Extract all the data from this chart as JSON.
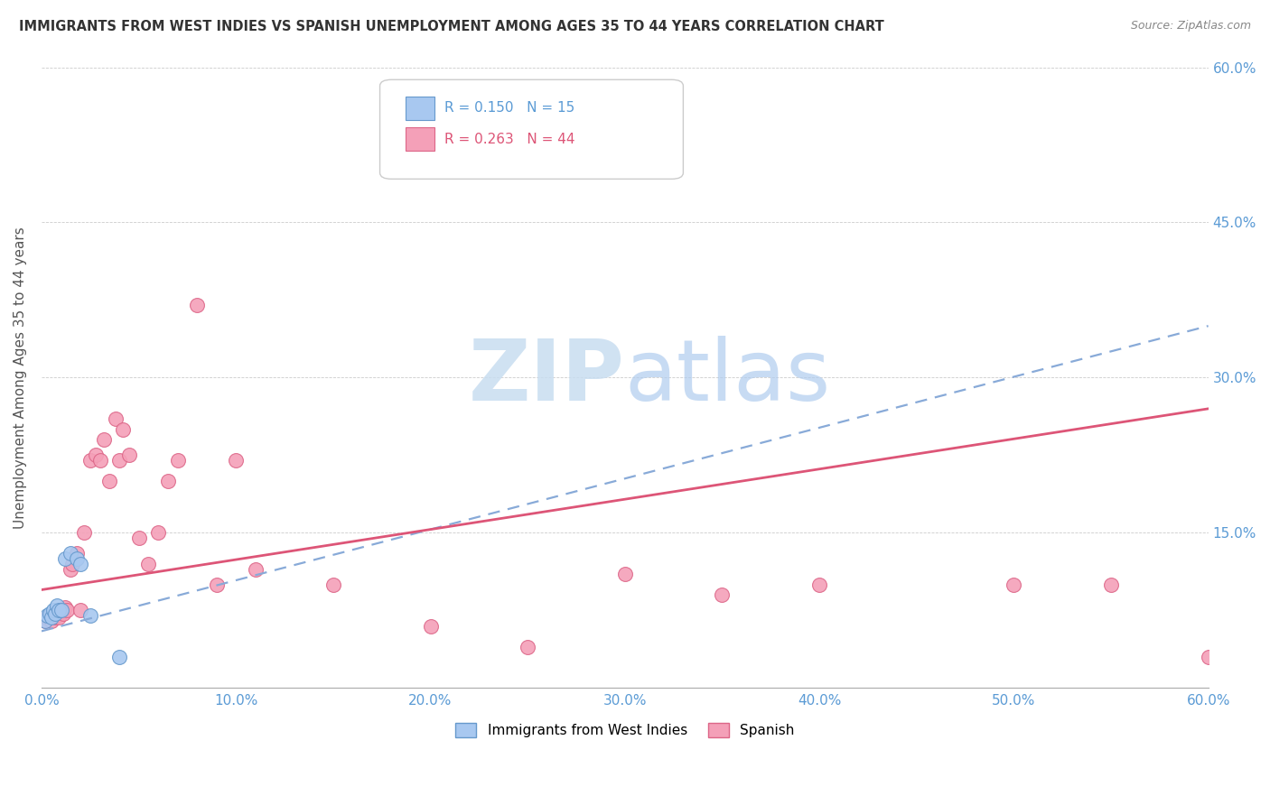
{
  "title": "IMMIGRANTS FROM WEST INDIES VS SPANISH UNEMPLOYMENT AMONG AGES 35 TO 44 YEARS CORRELATION CHART",
  "source": "Source: ZipAtlas.com",
  "ylabel": "Unemployment Among Ages 35 to 44 years",
  "xlim": [
    0.0,
    0.6
  ],
  "ylim": [
    0.0,
    0.6
  ],
  "xticks": [
    0.0,
    0.1,
    0.2,
    0.3,
    0.4,
    0.5,
    0.6
  ],
  "yticks": [
    0.0,
    0.15,
    0.3,
    0.45,
    0.6
  ],
  "xticklabels": [
    "0.0%",
    "10.0%",
    "20.0%",
    "30.0%",
    "40.0%",
    "50.0%",
    "60.0%"
  ],
  "yticklabels_right": [
    "15.0%",
    "30.0%",
    "45.0%",
    "60.0%"
  ],
  "west_indies_color": "#a8c8f0",
  "west_indies_edge": "#6699cc",
  "spanish_color": "#f4a0b8",
  "spanish_edge": "#dd6688",
  "trendline_west_color": "#88aad8",
  "trendline_spanish_color": "#dd5577",
  "legend_R_west": "R = 0.150",
  "legend_N_west": "N = 15",
  "legend_R_spanish": "R = 0.263",
  "legend_N_spanish": "N = 44",
  "west_indies_x": [
    0.002,
    0.003,
    0.004,
    0.005,
    0.006,
    0.007,
    0.008,
    0.009,
    0.01,
    0.012,
    0.015,
    0.018,
    0.02,
    0.025,
    0.04
  ],
  "west_indies_y": [
    0.065,
    0.07,
    0.072,
    0.068,
    0.075,
    0.072,
    0.08,
    0.075,
    0.075,
    0.125,
    0.13,
    0.125,
    0.12,
    0.07,
    0.03
  ],
  "spanish_x": [
    0.002,
    0.003,
    0.004,
    0.005,
    0.006,
    0.007,
    0.008,
    0.009,
    0.01,
    0.011,
    0.012,
    0.013,
    0.015,
    0.016,
    0.018,
    0.02,
    0.022,
    0.025,
    0.028,
    0.03,
    0.032,
    0.035,
    0.038,
    0.04,
    0.042,
    0.045,
    0.05,
    0.055,
    0.06,
    0.065,
    0.07,
    0.08,
    0.09,
    0.1,
    0.11,
    0.15,
    0.2,
    0.25,
    0.3,
    0.35,
    0.4,
    0.5,
    0.55,
    0.6
  ],
  "spanish_y": [
    0.065,
    0.068,
    0.07,
    0.065,
    0.072,
    0.068,
    0.07,
    0.068,
    0.075,
    0.072,
    0.078,
    0.075,
    0.115,
    0.12,
    0.13,
    0.075,
    0.15,
    0.22,
    0.225,
    0.22,
    0.24,
    0.2,
    0.26,
    0.22,
    0.25,
    0.225,
    0.145,
    0.12,
    0.15,
    0.2,
    0.22,
    0.37,
    0.1,
    0.22,
    0.115,
    0.1,
    0.06,
    0.04,
    0.11,
    0.09,
    0.1,
    0.1,
    0.1,
    0.03
  ],
  "trendline_west_x0": 0.0,
  "trendline_west_y0": 0.055,
  "trendline_west_x1": 0.6,
  "trendline_west_y1": 0.35,
  "trendline_spanish_x0": 0.0,
  "trendline_spanish_y0": 0.095,
  "trendline_spanish_x1": 0.6,
  "trendline_spanish_y1": 0.27
}
